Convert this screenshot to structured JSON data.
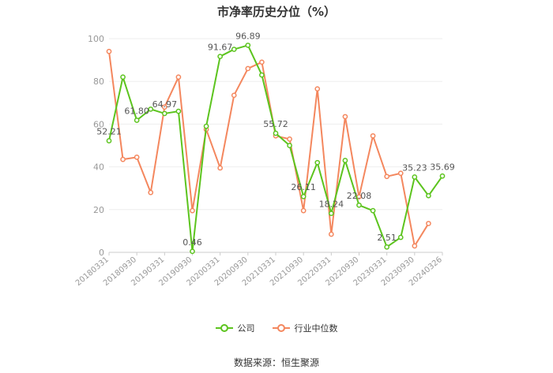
{
  "title": "市净率历史分位（%）",
  "source": "数据来源：恒生聚源",
  "chart_data": {
    "type": "line",
    "ylim": [
      0,
      100
    ],
    "yticks": [
      0,
      20,
      40,
      60,
      80,
      100
    ],
    "grid": true,
    "legend_position": "bottom",
    "x": [
      "20180331",
      "20180630",
      "20180930",
      "20181231",
      "20190331",
      "20190630",
      "20190930",
      "20191231",
      "20200331",
      "20200630",
      "20200930",
      "20201231",
      "20210331",
      "20210630",
      "20210930",
      "20211231",
      "20220331",
      "20220630",
      "20220930",
      "20221231",
      "20230331",
      "20230630",
      "20230930",
      "20231231",
      "20240326"
    ],
    "x_tick_labels": [
      "20180331",
      "20180930",
      "20190331",
      "20190930",
      "20200331",
      "20200930",
      "20210331",
      "20210930",
      "20220331",
      "20220930",
      "20230331",
      "20230930",
      "20240326"
    ],
    "x_tick_indices": [
      0,
      2,
      4,
      6,
      8,
      10,
      12,
      14,
      16,
      18,
      20,
      22,
      24
    ],
    "series": [
      {
        "name": "公司",
        "color": "#5CC41E",
        "values": [
          52.21,
          82,
          61.8,
          67,
          64.97,
          66,
          0.46,
          59,
          91.67,
          95,
          96.89,
          83,
          55.72,
          50,
          26.11,
          42,
          18.24,
          43,
          22.08,
          19.5,
          2.51,
          7,
          35.23,
          26.5,
          35.69
        ],
        "labels": {
          "0": "52.21",
          "2": "61.80",
          "4": "64.97",
          "6": "0.46",
          "8": "91.67",
          "10": "96.89",
          "12": "55.72",
          "14": "26.11",
          "16": "18.24",
          "18": "22.08",
          "20": "2.51",
          "22": "35.23",
          "24": "35.69"
        }
      },
      {
        "name": "行业中位数",
        "color": "#F4875E",
        "values": [
          94,
          43.5,
          44.5,
          28,
          68,
          82,
          19.5,
          57.5,
          39.5,
          73.5,
          86,
          89,
          54.5,
          53,
          19.5,
          76.5,
          8.5,
          63.5,
          26,
          54.5,
          35.5,
          37,
          3,
          13.5,
          null
        ]
      }
    ]
  }
}
